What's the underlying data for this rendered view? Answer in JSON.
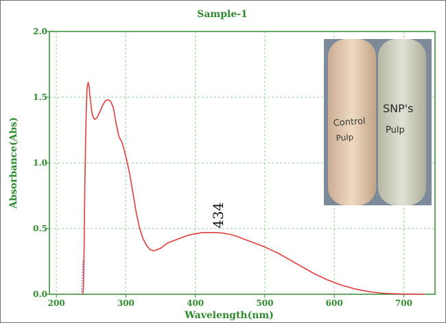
{
  "chart_data": {
    "type": "line",
    "title": "Sample-1",
    "xlabel": "Wavelength(nm)",
    "ylabel": "Absorbance(Abs)",
    "xlim": [
      190,
      745
    ],
    "ylim": [
      0.0,
      2.0
    ],
    "x_ticks": [
      200,
      300,
      400,
      500,
      600,
      700
    ],
    "x_tick_labels": [
      "200",
      "300",
      "400",
      "500",
      "600",
      "700"
    ],
    "y_ticks": [
      0.0,
      0.5,
      1.0,
      1.5,
      2.0
    ],
    "y_tick_labels": [
      "0.0",
      "0.5",
      "1.0",
      "1.5",
      "2.0"
    ],
    "grid": true,
    "line_color": "#e23b3b",
    "axis_color": "#2e8b2e",
    "grid_color": "#8fce8f",
    "series": [
      {
        "x": [
          238,
          239,
          240,
          241,
          242,
          243,
          244,
          245,
          246,
          247,
          248,
          250,
          252,
          255,
          258,
          262,
          266,
          270,
          274,
          278,
          282,
          286,
          290,
          295,
          300,
          305,
          310,
          315,
          320,
          325,
          330,
          335,
          340,
          345,
          350,
          355,
          360,
          370,
          380,
          390,
          400,
          410,
          420,
          430,
          440,
          450,
          460,
          470,
          480,
          490,
          500,
          510,
          520,
          530,
          540,
          550,
          560,
          570,
          580,
          590,
          600,
          610,
          620,
          630,
          640,
          650,
          660,
          670,
          680,
          690,
          700,
          710,
          720,
          730
        ],
        "y": [
          0.0,
          0.05,
          0.35,
          0.8,
          1.15,
          1.4,
          1.55,
          1.6,
          1.61,
          1.59,
          1.53,
          1.43,
          1.36,
          1.33,
          1.34,
          1.38,
          1.43,
          1.47,
          1.48,
          1.47,
          1.42,
          1.3,
          1.2,
          1.15,
          1.05,
          0.93,
          0.78,
          0.62,
          0.5,
          0.42,
          0.37,
          0.34,
          0.33,
          0.34,
          0.35,
          0.37,
          0.39,
          0.41,
          0.43,
          0.45,
          0.46,
          0.47,
          0.47,
          0.47,
          0.465,
          0.455,
          0.44,
          0.42,
          0.4,
          0.38,
          0.36,
          0.335,
          0.31,
          0.28,
          0.25,
          0.22,
          0.19,
          0.16,
          0.135,
          0.11,
          0.09,
          0.07,
          0.055,
          0.04,
          0.03,
          0.02,
          0.013,
          0.008,
          0.005,
          0.003,
          0.002,
          0.001,
          0.0,
          0.0
        ]
      }
    ],
    "annotations": [
      {
        "text": "434",
        "x": 434,
        "y": 0.47
      }
    ]
  },
  "inset_photo": {
    "tube_left_label_line1": "Control",
    "tube_left_label_line2": "Pulp",
    "tube_right_label_line1": "SNP's",
    "tube_right_label_line2": "Pulp"
  }
}
